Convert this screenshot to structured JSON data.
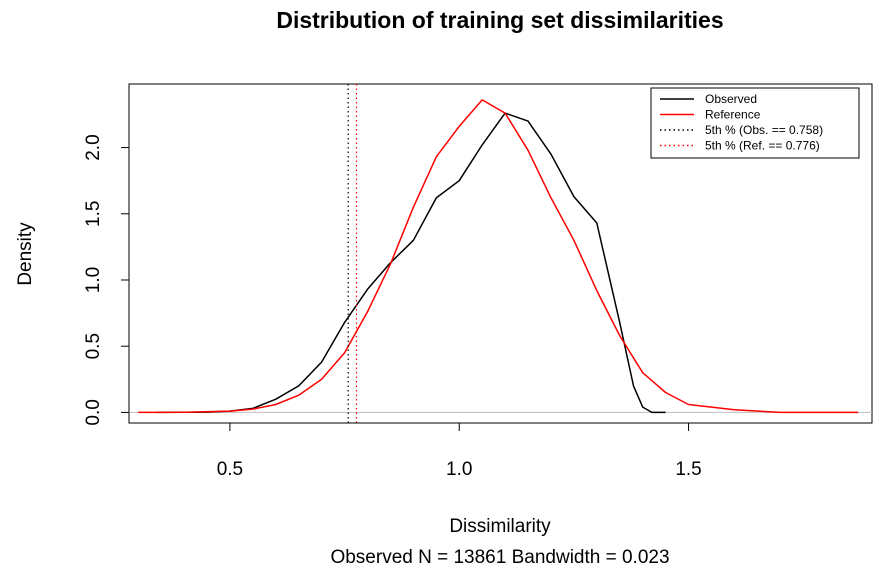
{
  "chart_data": {
    "type": "line",
    "title": "Distribution of training set dissimilarities",
    "xlabel": "Dissimilarity",
    "sublabel": "Observed N = 13861   Bandwidth = 0.023",
    "ylabel": "Density",
    "xlim": [
      0.28,
      1.9
    ],
    "ylim": [
      -0.08,
      2.48
    ],
    "x_ticks": [
      0.5,
      1.0,
      1.5
    ],
    "x_tick_labels": [
      "0.5",
      "1.0",
      "1.5"
    ],
    "y_ticks": [
      0.0,
      0.5,
      1.0,
      1.5,
      2.0
    ],
    "y_tick_labels": [
      "0.0",
      "0.5",
      "1.0",
      "1.5",
      "2.0"
    ],
    "baseline": 0,
    "legend_position": "top-right",
    "series": [
      {
        "name": "Observed",
        "color": "#000000",
        "style": "solid",
        "points": [
          [
            0.34,
            0.0
          ],
          [
            0.45,
            0.002
          ],
          [
            0.5,
            0.01
          ],
          [
            0.55,
            0.03
          ],
          [
            0.6,
            0.1
          ],
          [
            0.65,
            0.2
          ],
          [
            0.7,
            0.38
          ],
          [
            0.75,
            0.68
          ],
          [
            0.8,
            0.93
          ],
          [
            0.85,
            1.13
          ],
          [
            0.9,
            1.3
          ],
          [
            0.95,
            1.62
          ],
          [
            1.0,
            1.75
          ],
          [
            1.05,
            2.02
          ],
          [
            1.1,
            2.26
          ],
          [
            1.15,
            2.2
          ],
          [
            1.2,
            1.95
          ],
          [
            1.25,
            1.63
          ],
          [
            1.3,
            1.43
          ],
          [
            1.35,
            0.68
          ],
          [
            1.38,
            0.2
          ],
          [
            1.4,
            0.04
          ],
          [
            1.42,
            0.0
          ],
          [
            1.45,
            0.0
          ]
        ]
      },
      {
        "name": "Reference",
        "color": "#ff0000",
        "style": "solid",
        "points": [
          [
            0.3,
            0.0
          ],
          [
            0.4,
            0.001
          ],
          [
            0.5,
            0.01
          ],
          [
            0.55,
            0.025
          ],
          [
            0.6,
            0.06
          ],
          [
            0.65,
            0.13
          ],
          [
            0.7,
            0.25
          ],
          [
            0.75,
            0.45
          ],
          [
            0.8,
            0.76
          ],
          [
            0.85,
            1.12
          ],
          [
            0.9,
            1.55
          ],
          [
            0.95,
            1.93
          ],
          [
            1.0,
            2.16
          ],
          [
            1.05,
            2.36
          ],
          [
            1.1,
            2.26
          ],
          [
            1.15,
            1.98
          ],
          [
            1.2,
            1.62
          ],
          [
            1.25,
            1.3
          ],
          [
            1.3,
            0.92
          ],
          [
            1.35,
            0.58
          ],
          [
            1.4,
            0.3
          ],
          [
            1.45,
            0.15
          ],
          [
            1.5,
            0.06
          ],
          [
            1.6,
            0.02
          ],
          [
            1.7,
            0.0
          ],
          [
            1.87,
            0.0
          ]
        ]
      },
      {
        "name": "5th % (Obs. == 0.758)",
        "color": "#000000",
        "style": "dotted",
        "vline": 0.758
      },
      {
        "name": "5th % (Ref. == 0.776)",
        "color": "#ff0000",
        "style": "dotted",
        "vline": 0.776
      }
    ]
  }
}
